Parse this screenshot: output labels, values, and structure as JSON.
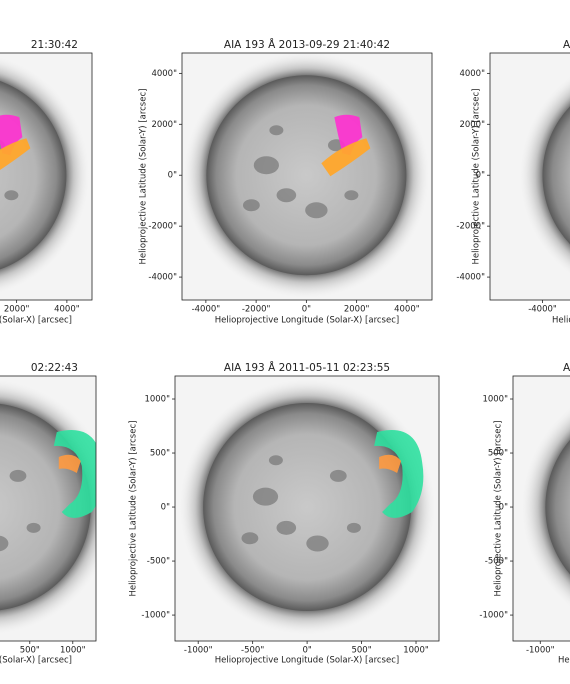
{
  "chart_data": [
    {
      "type": "image",
      "title": "21:30:42",
      "xlabel": "(Solar-X) [arcsec]",
      "xlim": [
        -4950,
        5000
      ],
      "ylim": [
        -4900,
        4800
      ],
      "xticks": [
        {
          "value": 2000,
          "label": "2000\""
        },
        {
          "value": 4000,
          "label": "4000\""
        }
      ],
      "yticks": []
    },
    {
      "type": "image",
      "title": "AIA 193 Å 2013-09-29 21:40:42",
      "xlabel": "Helioprojective Longitude (Solar-X) [arcsec]",
      "ylabel": "Helioprojective Latitude (Solar-Y) [arcsec]",
      "xlim": [
        -4950,
        5000
      ],
      "ylim": [
        -4900,
        4800
      ],
      "xticks": [
        {
          "value": -4000,
          "label": "-4000\""
        },
        {
          "value": -2000,
          "label": "-2000\""
        },
        {
          "value": 0,
          "label": "0\""
        },
        {
          "value": 2000,
          "label": "2000\""
        },
        {
          "value": 4000,
          "label": "4000\""
        }
      ],
      "yticks": [
        {
          "value": 4000,
          "label": "4000\""
        },
        {
          "value": 2000,
          "label": "2000\""
        },
        {
          "value": 0,
          "label": "0\""
        },
        {
          "value": -2000,
          "label": "-2000\""
        },
        {
          "value": -4000,
          "label": "-4000\""
        }
      ]
    },
    {
      "type": "image",
      "title": "A",
      "xlabel": "Helio",
      "ylabel": "Helioprojective Latitude (Solar-Y) [arcsec]",
      "xlim": [
        -6100,
        3900
      ],
      "ylim": [
        -4900,
        4800
      ],
      "xticks": [
        {
          "value": -4000,
          "label": "-4000\""
        }
      ],
      "yticks": [
        {
          "value": 4000,
          "label": "4000\""
        },
        {
          "value": 2000,
          "label": "2000\""
        },
        {
          "value": 0,
          "label": "0\""
        },
        {
          "value": -2000,
          "label": "-2000\""
        },
        {
          "value": -4000,
          "label": "-4000\""
        }
      ]
    },
    {
      "type": "image",
      "title": "02:22:43",
      "xlabel": "(Solar-X) [arcsec]",
      "xlim": [
        -1800,
        1270
      ],
      "ylim": [
        -1240,
        1213
      ],
      "xticks": [
        {
          "value": 500,
          "label": "500\""
        },
        {
          "value": 1000,
          "label": "1000\""
        }
      ],
      "yticks": []
    },
    {
      "type": "image",
      "title": "AIA 193 Å 2011-05-11 02:23:55",
      "xlabel": "Helioprojective Longitude (Solar-X) [arcsec]",
      "ylabel": "Helioprojective Latitude (Solar-Y) [arcsec]",
      "xlim": [
        -1213,
        1211
      ],
      "ylim": [
        -1240,
        1213
      ],
      "xticks": [
        {
          "value": -1000,
          "label": "-1000\""
        },
        {
          "value": -500,
          "label": "-500\""
        },
        {
          "value": 0,
          "label": "0\""
        },
        {
          "value": 500,
          "label": "500\""
        },
        {
          "value": 1000,
          "label": "1000\""
        }
      ],
      "yticks": [
        {
          "value": 1000,
          "label": "1000\""
        },
        {
          "value": 500,
          "label": "500\""
        },
        {
          "value": 0,
          "label": "0\""
        },
        {
          "value": -500,
          "label": "-500\""
        },
        {
          "value": -1000,
          "label": "-1000\""
        }
      ]
    },
    {
      "type": "image",
      "title": "A",
      "xlabel": "Helio",
      "ylabel": "Helioprojective Latitude (Solar-Y) [arcsec]",
      "xlim": [
        -1250,
        1170
      ],
      "ylim": [
        -1240,
        1213
      ],
      "xticks": [
        {
          "value": -1000,
          "label": "-1000\""
        }
      ],
      "yticks": [
        {
          "value": 1000,
          "label": "1000\""
        },
        {
          "value": 500,
          "label": "500\""
        },
        {
          "value": 0,
          "label": "0\""
        },
        {
          "value": -500,
          "label": "-500\""
        },
        {
          "value": -1000,
          "label": "-1000\""
        }
      ]
    }
  ]
}
